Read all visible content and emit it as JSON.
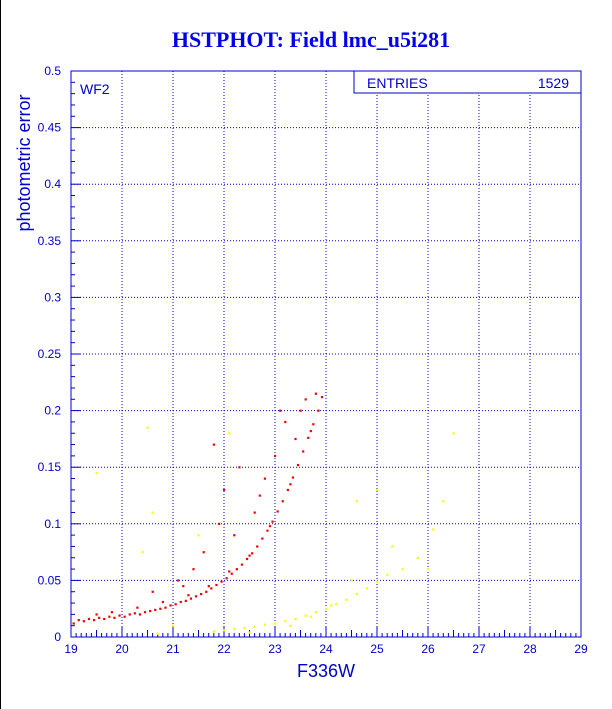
{
  "colors": {
    "axis": "#0000cc",
    "grid": "#0000cc",
    "title": "#0000ee",
    "series_main": "#ee0000",
    "series_faint": "#ffff00",
    "text": "#0000cc"
  },
  "chart_data": {
    "type": "scatter",
    "title": "HSTPHOT: Field lmc_u5i281",
    "xlabel": "F336W",
    "ylabel": "photometric error",
    "xlim": [
      19,
      29
    ],
    "ylim": [
      0,
      0.5
    ],
    "x_ticks": [
      "19",
      "20",
      "21",
      "22",
      "23",
      "24",
      "25",
      "26",
      "27",
      "28",
      "29"
    ],
    "y_ticks": [
      "0",
      "0.05",
      "0.1",
      "0.15",
      "0.2",
      "0.25",
      "0.3",
      "0.35",
      "0.4",
      "0.45",
      "0.5"
    ],
    "grid": true,
    "annotation": "WF2",
    "stats_box": {
      "label": "ENTRIES",
      "value": "1529",
      "position": "top-right"
    },
    "series": [
      {
        "color": "#ee0000",
        "points": [
          [
            19.05,
            0.012
          ],
          [
            19.15,
            0.015
          ],
          [
            19.25,
            0.014
          ],
          [
            19.35,
            0.016
          ],
          [
            19.45,
            0.015
          ],
          [
            19.55,
            0.017
          ],
          [
            19.65,
            0.016
          ],
          [
            19.75,
            0.018
          ],
          [
            19.85,
            0.017
          ],
          [
            19.95,
            0.019
          ],
          [
            20.05,
            0.018
          ],
          [
            20.15,
            0.02
          ],
          [
            20.25,
            0.021
          ],
          [
            20.35,
            0.02
          ],
          [
            20.45,
            0.022
          ],
          [
            20.55,
            0.023
          ],
          [
            20.65,
            0.024
          ],
          [
            20.75,
            0.025
          ],
          [
            20.85,
            0.026
          ],
          [
            20.95,
            0.028
          ],
          [
            21.05,
            0.029
          ],
          [
            21.15,
            0.031
          ],
          [
            21.25,
            0.032
          ],
          [
            21.35,
            0.034
          ],
          [
            21.45,
            0.036
          ],
          [
            21.55,
            0.038
          ],
          [
            21.65,
            0.04
          ],
          [
            21.75,
            0.043
          ],
          [
            21.85,
            0.046
          ],
          [
            21.95,
            0.049
          ],
          [
            22.05,
            0.052
          ],
          [
            22.15,
            0.056
          ],
          [
            22.25,
            0.06
          ],
          [
            22.35,
            0.064
          ],
          [
            22.45,
            0.069
          ],
          [
            22.55,
            0.074
          ],
          [
            22.65,
            0.08
          ],
          [
            22.75,
            0.087
          ],
          [
            22.85,
            0.094
          ],
          [
            22.95,
            0.102
          ],
          [
            23.05,
            0.111
          ],
          [
            23.15,
            0.12
          ],
          [
            23.25,
            0.13
          ],
          [
            23.35,
            0.141
          ],
          [
            23.45,
            0.152
          ],
          [
            23.55,
            0.164
          ],
          [
            23.65,
            0.176
          ],
          [
            23.75,
            0.188
          ],
          [
            23.85,
            0.2
          ],
          [
            23.92,
            0.212
          ],
          [
            19.5,
            0.02
          ],
          [
            19.8,
            0.022
          ],
          [
            20.3,
            0.026
          ],
          [
            20.8,
            0.031
          ],
          [
            21.3,
            0.037
          ],
          [
            21.7,
            0.045
          ],
          [
            22.1,
            0.058
          ],
          [
            22.5,
            0.072
          ],
          [
            22.9,
            0.098
          ],
          [
            23.3,
            0.135
          ],
          [
            23.7,
            0.182
          ],
          [
            21.1,
            0.05
          ],
          [
            21.6,
            0.075
          ],
          [
            21.9,
            0.1
          ],
          [
            22.2,
            0.09
          ],
          [
            21.4,
            0.06
          ],
          [
            20.6,
            0.04
          ],
          [
            22.0,
            0.13
          ],
          [
            21.8,
            0.17
          ],
          [
            22.6,
            0.11
          ],
          [
            22.3,
            0.15
          ],
          [
            23.0,
            0.16
          ],
          [
            23.2,
            0.19
          ],
          [
            23.5,
            0.2
          ],
          [
            23.8,
            0.215
          ],
          [
            23.6,
            0.21
          ],
          [
            23.1,
            0.2
          ],
          [
            22.8,
            0.14
          ],
          [
            23.4,
            0.175
          ],
          [
            22.7,
            0.125
          ],
          [
            21.2,
            0.045
          ]
        ]
      },
      {
        "color": "#ffff00",
        "points": [
          [
            21.8,
            0.005
          ],
          [
            22.0,
            0.006
          ],
          [
            22.2,
            0.007
          ],
          [
            22.4,
            0.008
          ],
          [
            22.6,
            0.009
          ],
          [
            22.8,
            0.011
          ],
          [
            23.0,
            0.012
          ],
          [
            23.2,
            0.014
          ],
          [
            23.4,
            0.016
          ],
          [
            23.6,
            0.019
          ],
          [
            23.8,
            0.022
          ],
          [
            24.0,
            0.025
          ],
          [
            24.2,
            0.029
          ],
          [
            24.4,
            0.033
          ],
          [
            24.6,
            0.038
          ],
          [
            24.8,
            0.043
          ],
          [
            25.0,
            0.049
          ],
          [
            25.2,
            0.055
          ],
          [
            25.5,
            0.06
          ],
          [
            25.8,
            0.07
          ],
          [
            26.1,
            0.095
          ],
          [
            26.3,
            0.12
          ],
          [
            26.5,
            0.18
          ],
          [
            24.6,
            0.12
          ],
          [
            25.0,
            0.13
          ],
          [
            22.1,
            0.18
          ],
          [
            21.5,
            0.09
          ],
          [
            20.5,
            0.185
          ],
          [
            19.5,
            0.145
          ],
          [
            20.4,
            0.075
          ],
          [
            20.6,
            0.11
          ],
          [
            23.3,
            0.01
          ],
          [
            23.7,
            0.018
          ],
          [
            24.1,
            0.028
          ],
          [
            24.5,
            0.05
          ],
          [
            25.3,
            0.08
          ],
          [
            26.0,
            0.06
          ],
          [
            21.0,
            0.01
          ],
          [
            20.7,
            0.003
          ],
          [
            22.5,
            0.004
          ]
        ]
      }
    ]
  }
}
